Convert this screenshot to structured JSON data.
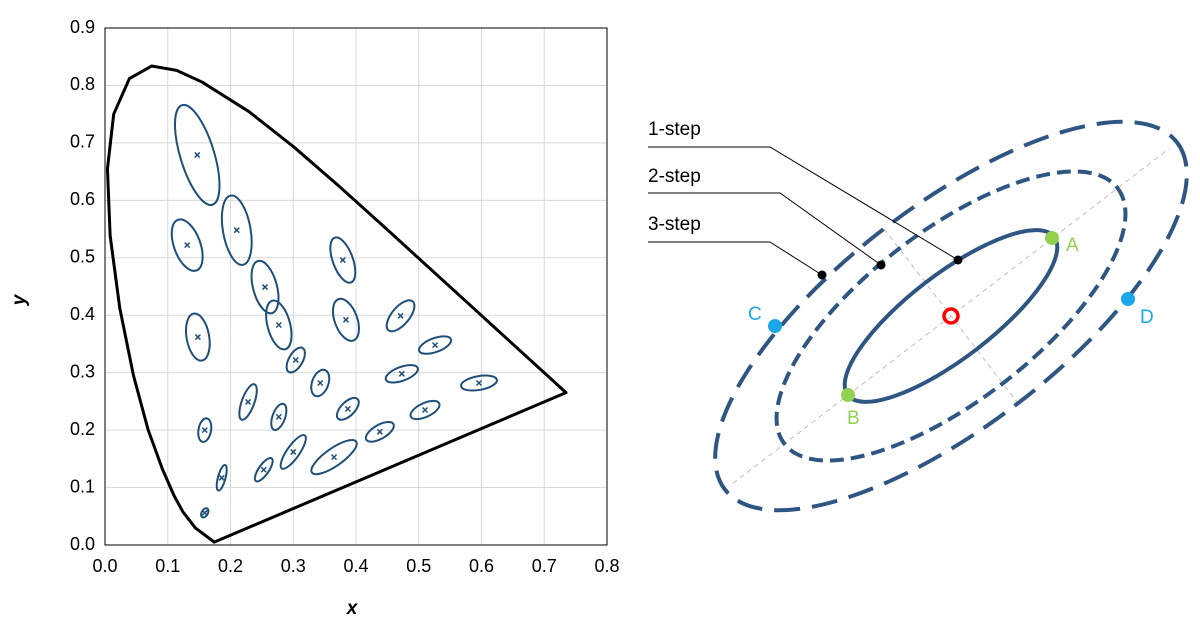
{
  "chart_data": {
    "type": "scatter",
    "xlabel": "x",
    "ylabel": "y",
    "xlim": [
      0,
      0.8
    ],
    "ylim": [
      0,
      0.9
    ],
    "xticks": [
      {
        "value": 0,
        "label": "0.0"
      },
      0.1,
      0.2,
      0.3,
      0.4,
      0.5,
      0.6,
      0.7,
      0.8
    ],
    "yticks": [
      {
        "value": 0,
        "label": "0.0"
      },
      0.1,
      0.2,
      0.3,
      0.4,
      0.5,
      0.6,
      0.7,
      0.8,
      0.9
    ],
    "grid": true,
    "color": "#1f4e79",
    "locus": {
      "color": "#000000",
      "x": [
        0.1741,
        0.144,
        0.1241,
        0.1096,
        0.0913,
        0.0687,
        0.0454,
        0.0235,
        0.0082,
        0.0039,
        0.0139,
        0.0389,
        0.0743,
        0.1142,
        0.1547,
        0.2296,
        0.3016,
        0.3731,
        0.4441,
        0.5125,
        0.5752,
        0.627,
        0.6915,
        0.7347
      ],
      "y": [
        0.005,
        0.0297,
        0.0578,
        0.0868,
        0.1327,
        0.2007,
        0.295,
        0.4127,
        0.5384,
        0.6548,
        0.7502,
        0.812,
        0.8338,
        0.8262,
        0.8059,
        0.7543,
        0.6923,
        0.6245,
        0.5547,
        0.4866,
        0.4242,
        0.3725,
        0.3083,
        0.2653
      ]
    },
    "ellipses": {
      "x": [
        0.147,
        0.131,
        0.21,
        0.255,
        0.148,
        0.277,
        0.379,
        0.384,
        0.471,
        0.526,
        0.596,
        0.473,
        0.51,
        0.438,
        0.387,
        0.343,
        0.304,
        0.365,
        0.3,
        0.253,
        0.228,
        0.277,
        0.159,
        0.186,
        0.159
      ],
      "y": [
        0.679,
        0.522,
        0.548,
        0.449,
        0.362,
        0.383,
        0.496,
        0.392,
        0.399,
        0.348,
        0.282,
        0.298,
        0.235,
        0.197,
        0.237,
        0.282,
        0.322,
        0.153,
        0.162,
        0.131,
        0.249,
        0.223,
        0.2,
        0.117,
        0.056
      ],
      "a": [
        0.083,
        0.043,
        0.056,
        0.043,
        0.038,
        0.04,
        0.038,
        0.035,
        0.03,
        0.027,
        0.029,
        0.027,
        0.025,
        0.025,
        0.022,
        0.022,
        0.022,
        0.043,
        0.032,
        0.022,
        0.03,
        0.022,
        0.019,
        0.021,
        0.008
      ],
      "b": [
        0.027,
        0.021,
        0.022,
        0.019,
        0.018,
        0.018,
        0.016,
        0.018,
        0.014,
        0.011,
        0.011,
        0.011,
        0.011,
        0.011,
        0.011,
        0.013,
        0.011,
        0.014,
        0.01,
        0.008,
        0.01,
        0.01,
        0.01,
        0.006,
        0.005
      ],
      "angle": [
        73,
        70,
        80,
        75,
        80,
        75,
        70,
        70,
        -50,
        -20,
        -10,
        -20,
        -25,
        -30,
        -45,
        -70,
        -60,
        -35,
        -55,
        -55,
        -70,
        -70,
        -80,
        -75,
        -60
      ]
    }
  },
  "diagram": {
    "steps": [
      "1-step",
      "2-step",
      "3-step"
    ],
    "points": [
      "A",
      "B",
      "C",
      "D"
    ]
  }
}
